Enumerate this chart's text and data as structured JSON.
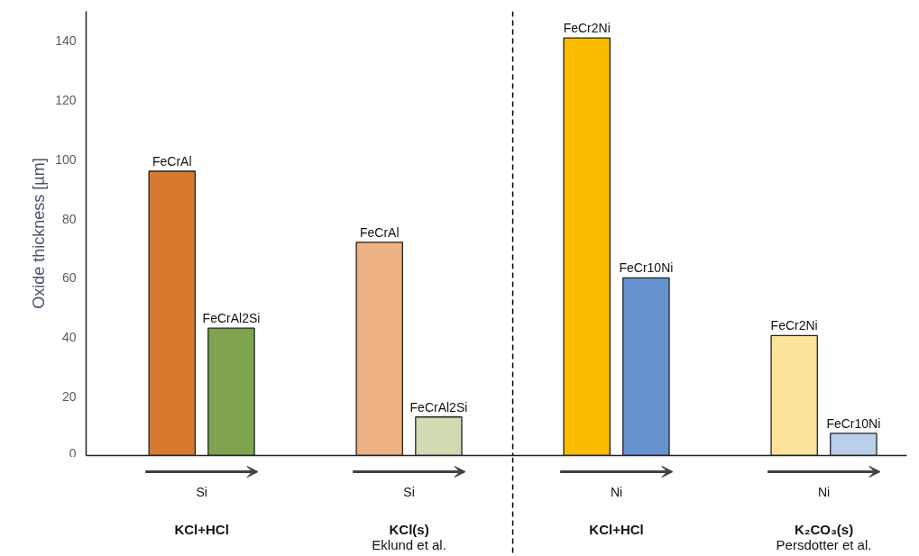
{
  "chart_data": {
    "type": "bar",
    "categories": [
      "KCl+HCl",
      "KCl(s)\nEklund et al.",
      "KCl+HCl",
      "K₂CO₃(s)\nPersdotter et al."
    ],
    "series": [
      {
        "values": [
          96,
          72,
          141,
          40.5
        ],
        "colors": [
          "#d77a30",
          "#edb184",
          "#fbbc00",
          "#fde29b"
        ],
        "value_labels": [
          "FeCrAl",
          "FeCrAl",
          "FeCr2Ni",
          "FeCr2Ni"
        ]
      },
      {
        "values": [
          43,
          13,
          60,
          7.5
        ],
        "colors": [
          "#7ea44f",
          "#d0dbb2",
          "#6692cf",
          "#bccfea"
        ],
        "value_labels": [
          "FeCrAl2Si",
          "FeCrAl2Si",
          "FeCr10Ni",
          "FeCr10Ni"
        ]
      }
    ],
    "ylim": [
      0,
      150
    ],
    "yticks": [
      0,
      20,
      40,
      60,
      80,
      100,
      120,
      140
    ],
    "ylabel": "Oxide thickness [µm]",
    "annotations": [
      "Si",
      "Si",
      "Ni",
      "Ni"
    ]
  }
}
